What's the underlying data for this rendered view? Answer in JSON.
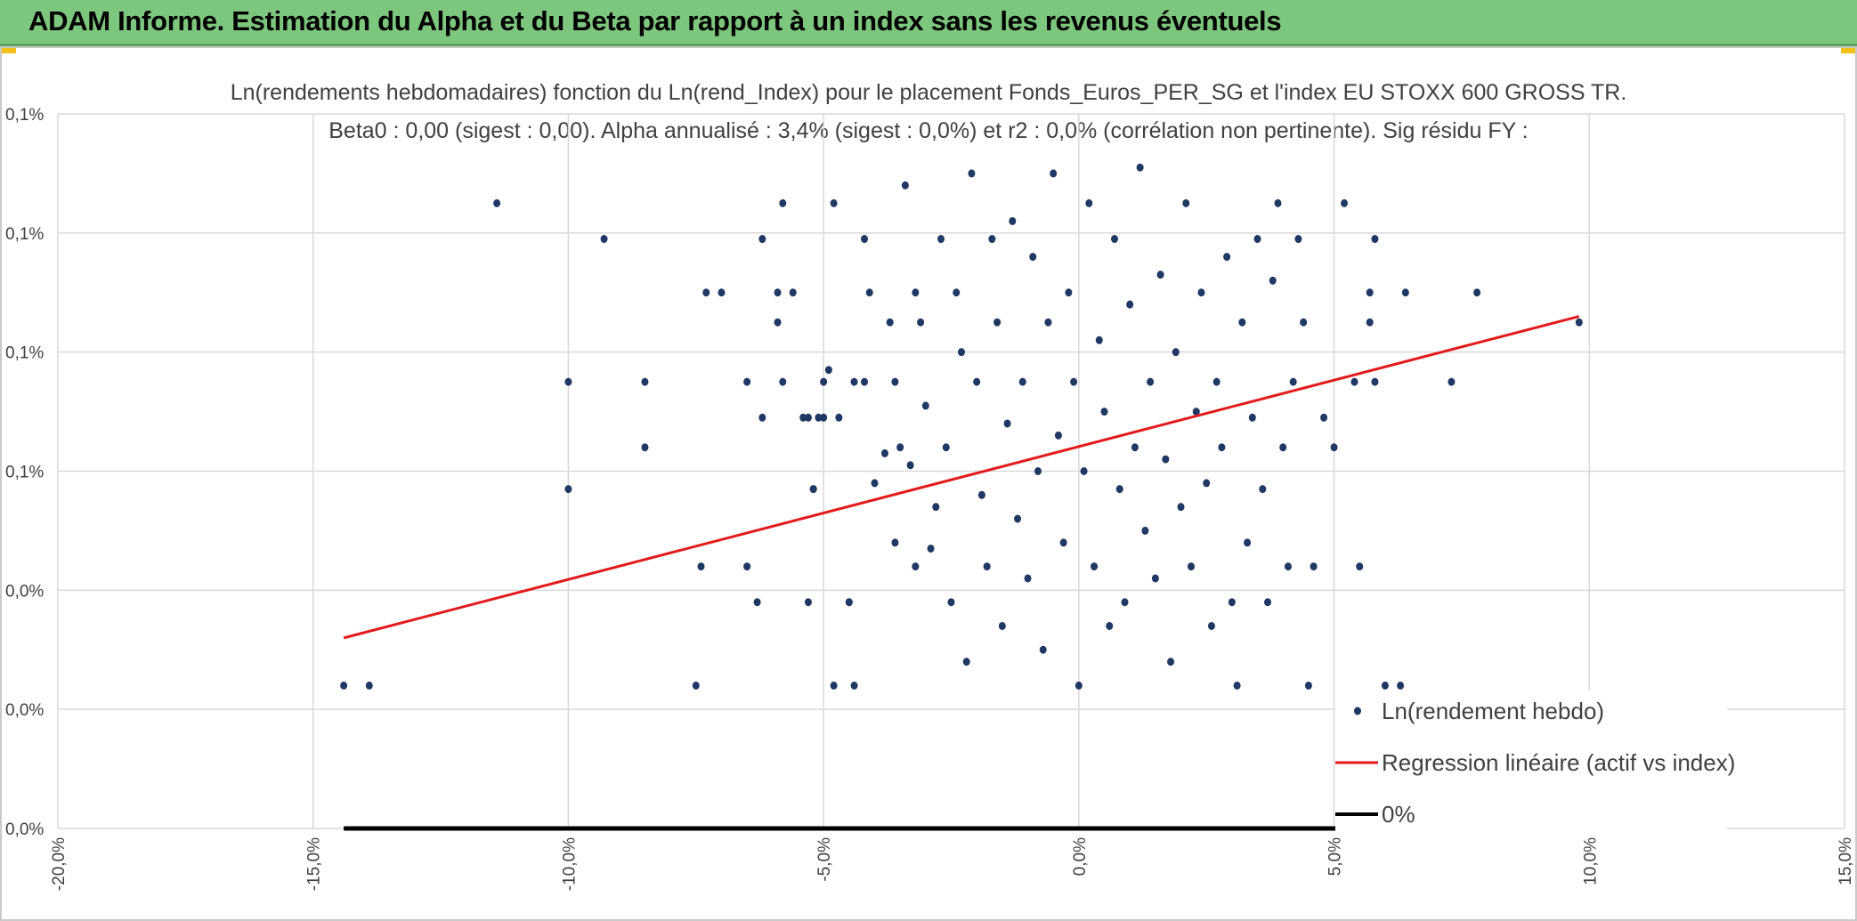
{
  "header": {
    "title": "ADAM Informe. Estimation du Alpha et du Beta par rapport à un index sans les revenus éventuels"
  },
  "colors": {
    "banner": "#7dc67d",
    "points": "#203864",
    "regression": "#e31a1c",
    "zero_line": "#000000",
    "grid": "#d9d9d9",
    "accent": "#f2c21b"
  },
  "chart_data": {
    "type": "scatter",
    "title": "Ln(rendements hebdomadaires) fonction du Ln(rend_Index) pour le placement Fonds_Euros_PER_SG et l'index EU STOXX 600 GROSS TR.",
    "subtitle": "Beta0 : 0,00 (sigest : 0,00). Alpha annualisé : 3,4% (sigest : 0,0%) et r2 : 0,0% (corrélation non pertinente). Sig résidu FY :",
    "xlim": [
      -0.2,
      0.15
    ],
    "ylim": [
      0.0,
      0.0012
    ],
    "x_ticks": [
      {
        "value": -0.2,
        "label": "-20,0%"
      },
      {
        "value": -0.15,
        "label": "-15,0%"
      },
      {
        "value": -0.1,
        "label": "-10,0%"
      },
      {
        "value": -0.05,
        "label": "-5,0%"
      },
      {
        "value": 0.0,
        "label": "0,0%"
      },
      {
        "value": 0.05,
        "label": "5,0%"
      },
      {
        "value": 0.1,
        "label": "10,0%"
      },
      {
        "value": 0.15,
        "label": "15,0%"
      }
    ],
    "y_ticks": [
      {
        "value": 0.0,
        "label": "0,0%"
      },
      {
        "value": 0.0002,
        "label": "0,0%"
      },
      {
        "value": 0.0004,
        "label": "0,0%"
      },
      {
        "value": 0.0006,
        "label": "0,1%"
      },
      {
        "value": 0.0008,
        "label": "0,1%"
      },
      {
        "value": 0.001,
        "label": "0,1%"
      },
      {
        "value": 0.0012,
        "label": "0,1%"
      }
    ],
    "legend_position": "bottom-right",
    "grid": true,
    "series": [
      {
        "name": "Ln(rendement hebdo)",
        "kind": "scatter",
        "points": [
          [
            -0.144,
            0.00024
          ],
          [
            -0.139,
            0.00024
          ],
          [
            -0.114,
            0.00105
          ],
          [
            -0.093,
            0.00099
          ],
          [
            -0.1,
            0.00075
          ],
          [
            -0.085,
            0.00075
          ],
          [
            -0.085,
            0.00064
          ],
          [
            -0.1,
            0.00057
          ],
          [
            -0.075,
            0.00024
          ],
          [
            -0.074,
            0.00044
          ],
          [
            -0.073,
            0.0009
          ],
          [
            -0.07,
            0.0009
          ],
          [
            -0.065,
            0.00075
          ],
          [
            -0.065,
            0.00044
          ],
          [
            -0.063,
            0.00038
          ],
          [
            -0.062,
            0.00069
          ],
          [
            -0.062,
            0.00099
          ],
          [
            -0.059,
            0.0009
          ],
          [
            -0.059,
            0.00085
          ],
          [
            -0.058,
            0.00105
          ],
          [
            -0.058,
            0.00075
          ],
          [
            -0.056,
            0.0009
          ],
          [
            -0.054,
            0.00069
          ],
          [
            -0.053,
            0.00069
          ],
          [
            -0.053,
            0.00038
          ],
          [
            -0.052,
            0.00057
          ],
          [
            -0.052,
            0.00057
          ],
          [
            -0.051,
            0.00069
          ],
          [
            -0.05,
            0.00069
          ],
          [
            -0.05,
            0.00075
          ],
          [
            -0.049,
            0.00077
          ],
          [
            -0.048,
            0.00105
          ],
          [
            -0.047,
            0.00069
          ],
          [
            -0.045,
            0.00038
          ],
          [
            -0.044,
            0.00075
          ],
          [
            -0.042,
            0.00075
          ],
          [
            -0.048,
            0.00024
          ],
          [
            -0.044,
            0.00024
          ],
          [
            -0.045,
            0.00038
          ],
          [
            -0.042,
            0.00099
          ],
          [
            -0.041,
            0.0009
          ],
          [
            -0.04,
            0.00058
          ],
          [
            -0.038,
            0.00063
          ],
          [
            -0.037,
            0.00085
          ],
          [
            -0.036,
            0.00048
          ],
          [
            -0.036,
            0.00075
          ],
          [
            -0.035,
            0.00064
          ],
          [
            -0.034,
            0.00108
          ],
          [
            -0.033,
            0.00061
          ],
          [
            -0.032,
            0.00044
          ],
          [
            -0.032,
            0.0009
          ],
          [
            -0.031,
            0.00085
          ],
          [
            -0.03,
            0.00071
          ],
          [
            -0.029,
            0.00047
          ],
          [
            -0.028,
            0.00054
          ],
          [
            -0.027,
            0.00099
          ],
          [
            -0.026,
            0.00064
          ],
          [
            -0.025,
            0.00038
          ],
          [
            -0.024,
            0.0009
          ],
          [
            -0.023,
            0.0008
          ],
          [
            -0.022,
            0.00028
          ],
          [
            -0.021,
            0.0011
          ],
          [
            -0.02,
            0.00075
          ],
          [
            -0.019,
            0.00056
          ],
          [
            -0.018,
            0.00044
          ],
          [
            -0.017,
            0.00099
          ],
          [
            -0.016,
            0.00085
          ],
          [
            -0.015,
            0.00034
          ],
          [
            -0.014,
            0.00068
          ],
          [
            -0.013,
            0.00102
          ],
          [
            -0.012,
            0.00052
          ],
          [
            -0.011,
            0.00075
          ],
          [
            -0.01,
            0.00042
          ],
          [
            -0.009,
            0.00096
          ],
          [
            -0.008,
            0.0006
          ],
          [
            -0.007,
            0.0003
          ],
          [
            -0.006,
            0.00085
          ],
          [
            -0.005,
            0.0011
          ],
          [
            -0.004,
            0.00066
          ],
          [
            -0.003,
            0.00048
          ],
          [
            -0.002,
            0.0009
          ],
          [
            -0.001,
            0.00075
          ],
          [
            0.0,
            0.00024
          ],
          [
            0.001,
            0.0006
          ],
          [
            0.002,
            0.00105
          ],
          [
            0.003,
            0.00044
          ],
          [
            0.004,
            0.00082
          ],
          [
            0.005,
            0.0007
          ],
          [
            0.006,
            0.00034
          ],
          [
            0.007,
            0.00099
          ],
          [
            0.008,
            0.00057
          ],
          [
            0.009,
            0.00038
          ],
          [
            0.01,
            0.00088
          ],
          [
            0.011,
            0.00064
          ],
          [
            0.012,
            0.00111
          ],
          [
            0.013,
            0.0005
          ],
          [
            0.014,
            0.00075
          ],
          [
            0.015,
            0.00042
          ],
          [
            0.016,
            0.00093
          ],
          [
            0.017,
            0.00062
          ],
          [
            0.018,
            0.00028
          ],
          [
            0.019,
            0.0008
          ],
          [
            0.02,
            0.00054
          ],
          [
            0.021,
            0.00105
          ],
          [
            0.022,
            0.00044
          ],
          [
            0.023,
            0.0007
          ],
          [
            0.024,
            0.0009
          ],
          [
            0.025,
            0.00058
          ],
          [
            0.026,
            0.00034
          ],
          [
            0.027,
            0.00075
          ],
          [
            0.028,
            0.00064
          ],
          [
            0.029,
            0.00096
          ],
          [
            0.03,
            0.00038
          ],
          [
            0.031,
            0.00024
          ],
          [
            0.032,
            0.00085
          ],
          [
            0.033,
            0.00048
          ],
          [
            0.034,
            0.00069
          ],
          [
            0.035,
            0.00099
          ],
          [
            0.036,
            0.00057
          ],
          [
            0.037,
            0.00038
          ],
          [
            0.038,
            0.00092
          ],
          [
            0.039,
            0.00105
          ],
          [
            0.04,
            0.00064
          ],
          [
            0.041,
            0.00044
          ],
          [
            0.042,
            0.00075
          ],
          [
            0.043,
            0.00099
          ],
          [
            0.044,
            0.00085
          ],
          [
            0.045,
            0.00024
          ],
          [
            0.046,
            0.00044
          ],
          [
            0.048,
            0.00069
          ],
          [
            0.05,
            0.00064
          ],
          [
            0.052,
            0.00105
          ],
          [
            0.054,
            0.00075
          ],
          [
            0.055,
            0.00044
          ],
          [
            0.057,
            0.0009
          ],
          [
            0.058,
            0.00099
          ],
          [
            0.06,
            0.00024
          ],
          [
            0.063,
            0.00024
          ],
          [
            0.064,
            0.0009
          ],
          [
            0.073,
            0.00075
          ],
          [
            0.078,
            0.0009
          ],
          [
            0.098,
            0.00085
          ],
          [
            0.058,
            0.00075
          ],
          [
            0.057,
            0.00085
          ]
        ]
      },
      {
        "name": "Regression linéaire (actif vs index)",
        "kind": "line",
        "points": [
          [
            -0.144,
            0.00032
          ],
          [
            0.098,
            0.00086
          ]
        ]
      },
      {
        "name": "0%",
        "kind": "line",
        "points": [
          [
            -0.144,
            0.0
          ],
          [
            0.098,
            0.0
          ]
        ]
      }
    ]
  }
}
